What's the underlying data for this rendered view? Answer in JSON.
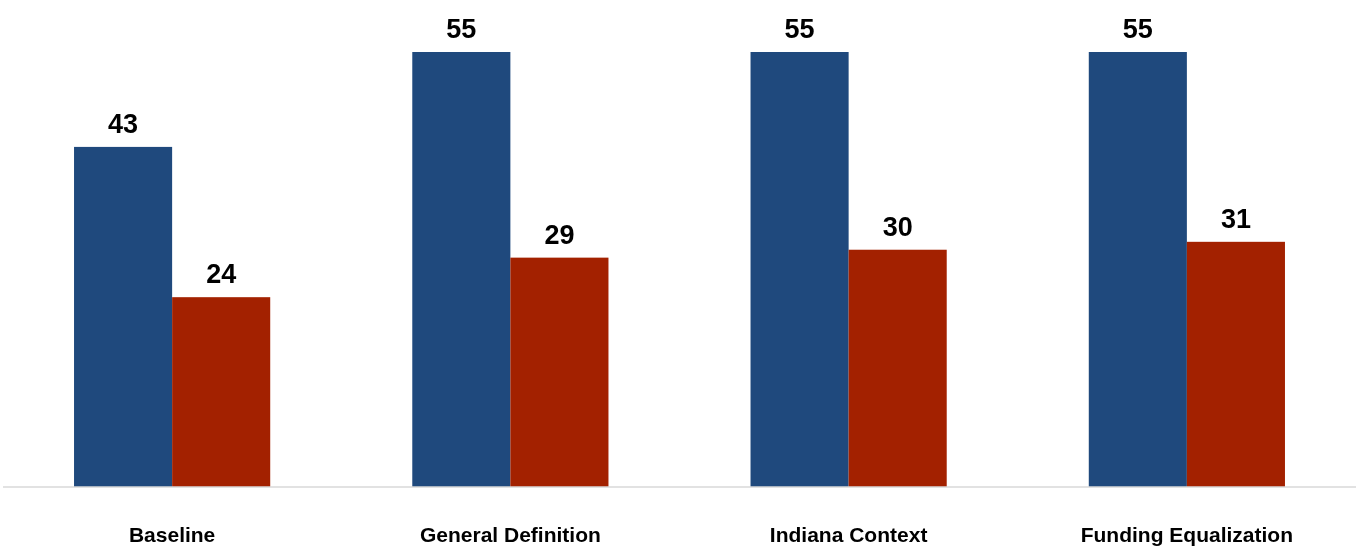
{
  "chart_data": {
    "type": "bar",
    "categories": [
      "Baseline",
      "General Definition",
      "Indiana Context",
      "Funding Equalization"
    ],
    "series": [
      {
        "color": "#1f497d",
        "values": [
          43,
          55,
          55,
          55
        ]
      },
      {
        "color": "#a32100",
        "values": [
          24,
          29,
          30,
          31
        ]
      }
    ],
    "data_labels": true
  }
}
